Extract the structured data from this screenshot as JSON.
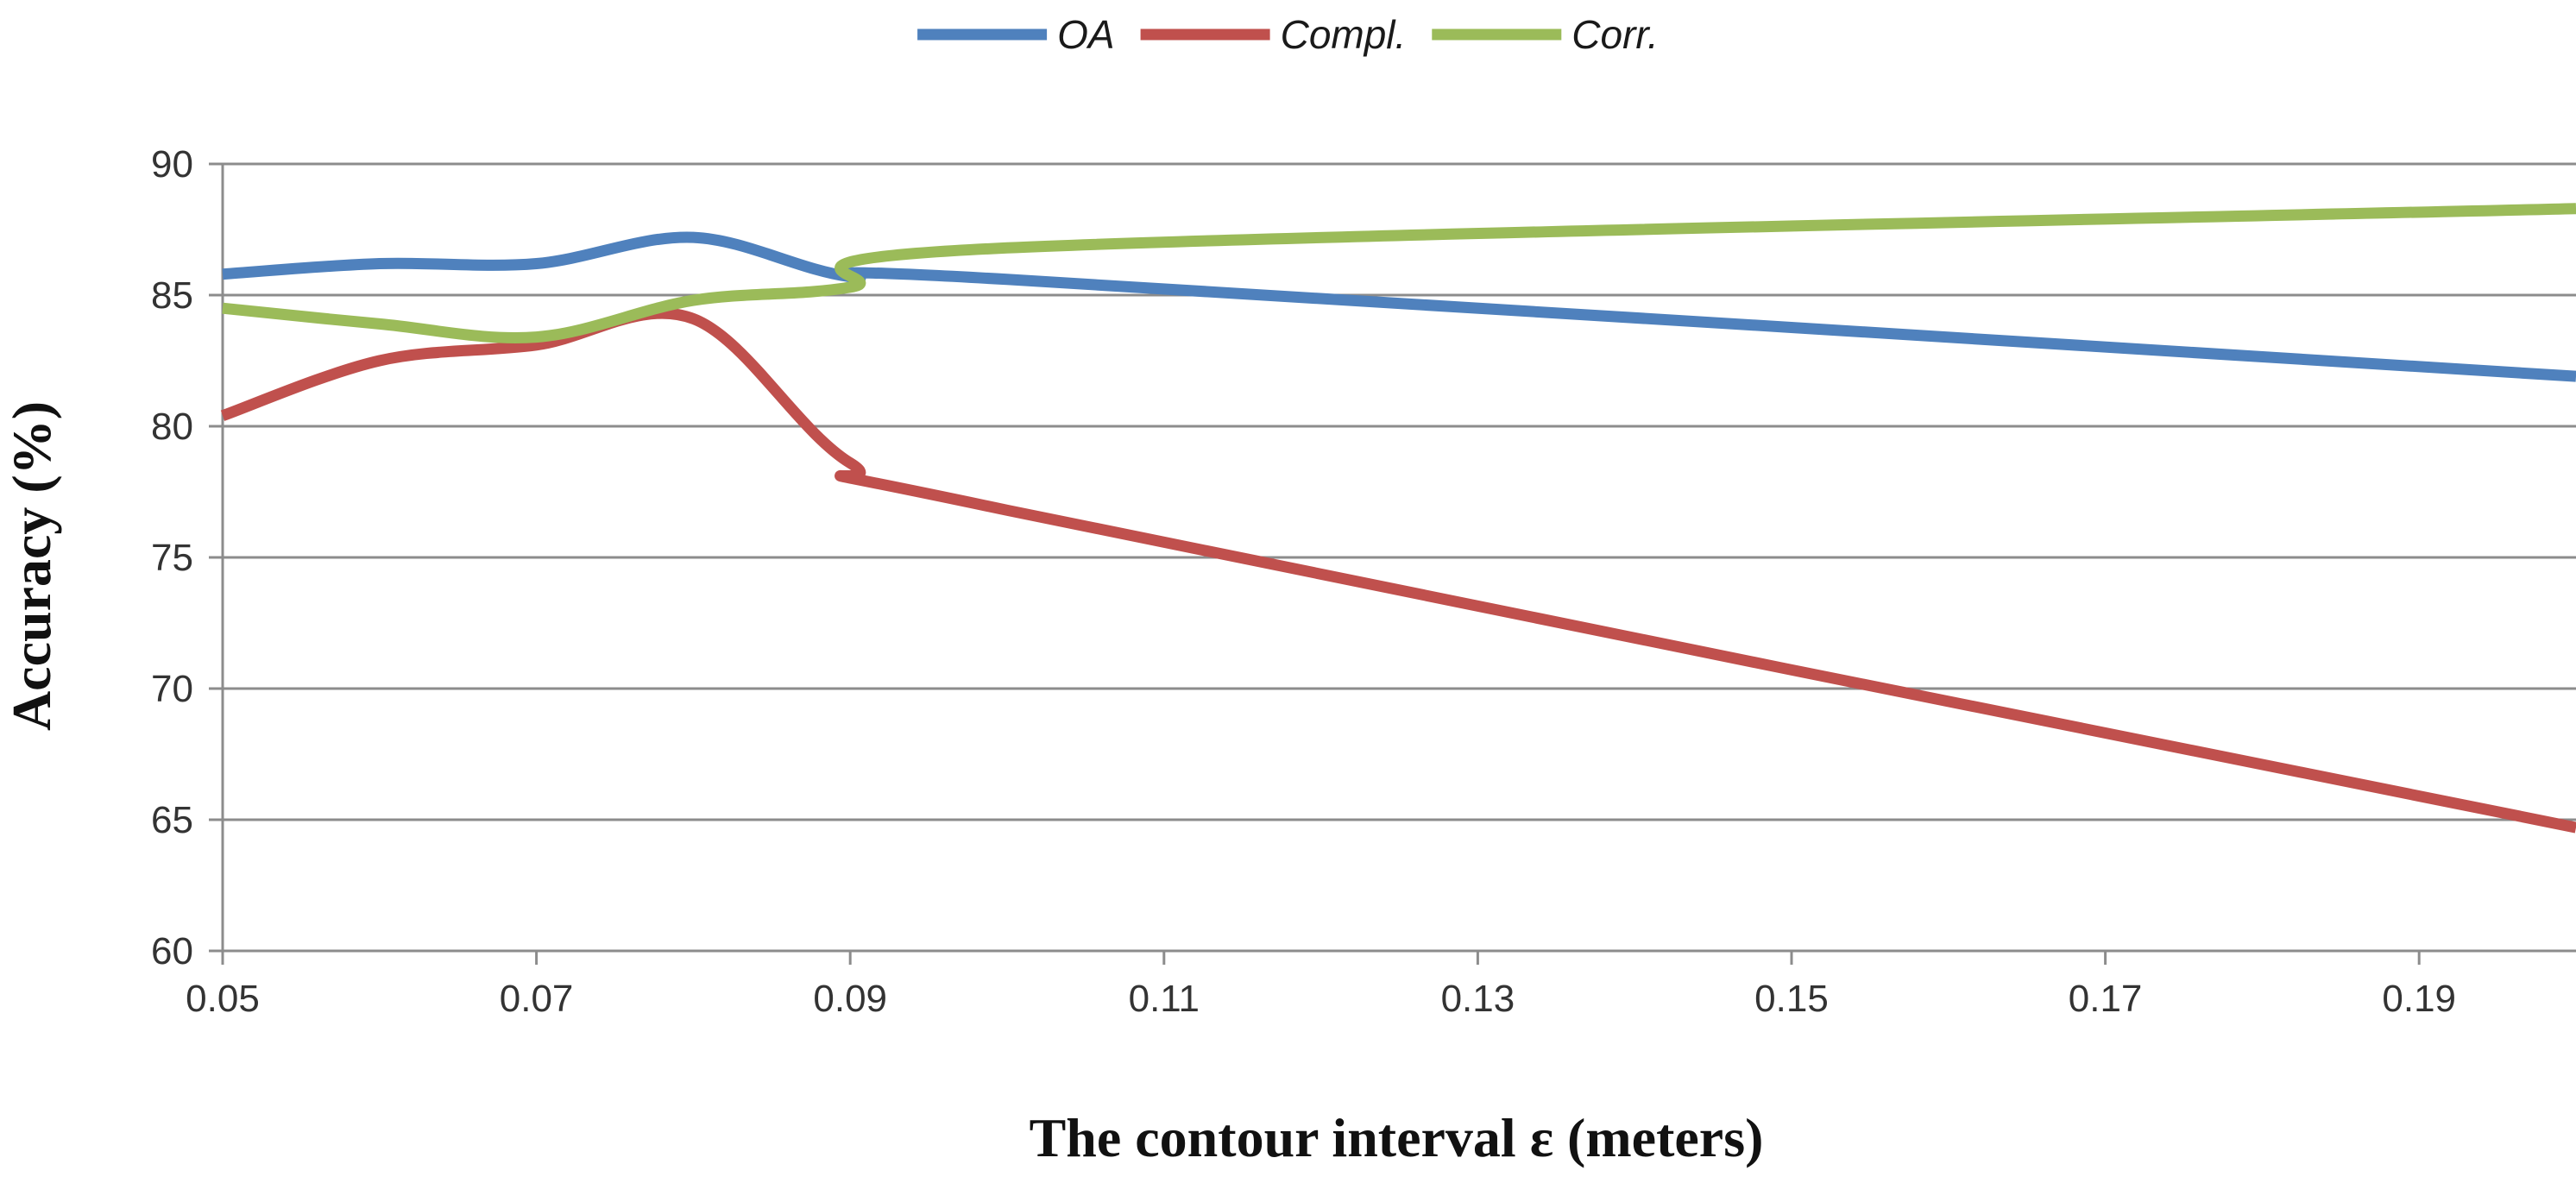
{
  "chart_data": {
    "type": "line",
    "title": "",
    "xlabel": "The contour interval ε (meters)",
    "ylabel": "Accuracy (%)",
    "xlim": [
      0.05,
      0.2
    ],
    "ylim": [
      60,
      90
    ],
    "x_ticks": [
      "0.05",
      "0.07",
      "0.09",
      "0.11",
      "0.13",
      "0.15",
      "0.17",
      "0.19"
    ],
    "y_ticks": [
      "60",
      "65",
      "70",
      "75",
      "80",
      "85",
      "90"
    ],
    "grid": true,
    "legend_position": "top-center",
    "x": [
      0.05,
      0.06,
      0.07,
      0.08,
      0.09,
      0.1,
      0.2
    ],
    "series": [
      {
        "name": "OA",
        "color": "#4F81BD",
        "values": [
          85.8,
          86.2,
          86.2,
          87.2,
          85.7,
          85.6,
          81.9
        ]
      },
      {
        "name": "Compl.",
        "color": "#C0504D",
        "values": [
          80.4,
          82.5,
          83.1,
          84.1,
          78.6,
          76.8,
          64.7
        ]
      },
      {
        "name": "Corr.",
        "color": "#9BBB59",
        "values": [
          84.5,
          83.9,
          83.4,
          84.8,
          85.3,
          86.8,
          88.3
        ]
      }
    ]
  }
}
